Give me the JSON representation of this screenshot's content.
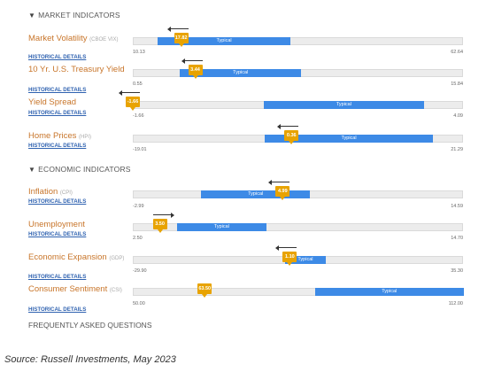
{
  "sections": {
    "market_header": "MARKET INDICATORS",
    "economic_header": "ECONOMIC INDICATORS"
  },
  "indicators": [
    {
      "name": "Market Volatility",
      "abbr": "(CBOE VIX)",
      "link": "HISTORICAL DETAILS",
      "min": "10.13",
      "max": "62.64",
      "value": "17.82",
      "value_num": 17.82,
      "min_num": 10.13,
      "max_num": 62.64,
      "typical_low": 14.0,
      "typical_high": 35.0,
      "typical_label": "Typical",
      "arrow": "left"
    },
    {
      "name": "10 Yr. U.S. Treasury Yield",
      "abbr": "",
      "link": "HISTORICAL DETAILS",
      "min": "0.55",
      "max": "15.84",
      "value": "3.44",
      "value_num": 3.44,
      "min_num": 0.55,
      "max_num": 15.84,
      "typical_low": 2.7,
      "typical_high": 8.3,
      "typical_label": "Typical",
      "arrow": "left"
    },
    {
      "name": "Yield Spread",
      "abbr": "",
      "link": "HISTORICAL DETAILS",
      "min": "-1.66",
      "max": "4.09",
      "value": "-1.66",
      "value_num": -1.66,
      "min_num": -1.66,
      "max_num": 4.09,
      "typical_low": 0.6,
      "typical_high": 3.4,
      "typical_label": "Typical",
      "arrow": "left"
    },
    {
      "name": "Home Prices",
      "abbr": "(HPI)",
      "link": "HISTORICAL DETAILS",
      "min": "-19.01",
      "max": "21.29",
      "value": "0.36",
      "value_num": 0.36,
      "min_num": -19.01,
      "max_num": 21.29,
      "typical_low": -3.0,
      "typical_high": 17.5,
      "typical_label": "Typical",
      "arrow": "left"
    },
    {
      "name": "Inflation",
      "abbr": "(CPI)",
      "link": "HISTORICAL DETAILS",
      "min": "-2.99",
      "max": "14.59",
      "value": "4.99",
      "value_num": 4.99,
      "min_num": -2.99,
      "max_num": 14.59,
      "typical_low": 0.6,
      "typical_high": 6.4,
      "typical_label": "Typical",
      "arrow": "left"
    },
    {
      "name": "Unemployment",
      "abbr": "",
      "link": "HISTORICAL DETAILS",
      "min": "2.50",
      "max": "14.70",
      "value": "3.50",
      "value_num": 3.5,
      "min_num": 2.5,
      "max_num": 14.7,
      "typical_low": 4.1,
      "typical_high": 7.4,
      "typical_label": "Typical",
      "arrow": "right"
    },
    {
      "name": "Economic Expansion",
      "abbr": "(GDP)",
      "link": "HISTORICAL DETAILS",
      "min": "-29.90",
      "max": "35.30",
      "value": "1.10",
      "value_num": 1.1,
      "min_num": -29.9,
      "max_num": 35.3,
      "typical_low": 0.0,
      "typical_high": 8.0,
      "typical_label": "Typical",
      "arrow": "left"
    },
    {
      "name": "Consumer Sentiment",
      "abbr": "(CSI)",
      "link": "HISTORICAL DETAILS",
      "min": "50.00",
      "max": "112.00",
      "value": "63.50",
      "value_num": 63.5,
      "min_num": 50.0,
      "max_num": 112.0,
      "typical_low": 84.0,
      "typical_high": 112.0,
      "typical_label": "Typical",
      "arrow": "none"
    }
  ],
  "faq_label": "FREQUENTLY ASKED QUESTIONS",
  "source": "Source: Russell Investments, May 2023",
  "colors": {
    "typical_bar": "#3d8ae6",
    "marker": "#e8a300",
    "name_text": "#c8752a",
    "link": "#2f62b0"
  }
}
